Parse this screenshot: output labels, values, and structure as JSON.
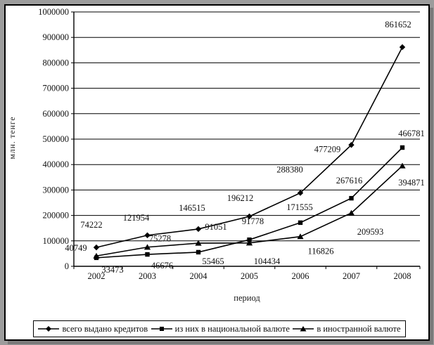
{
  "chart_data": {
    "type": "line",
    "title": "",
    "ylabel": "млн. тенге",
    "xlabel": "период",
    "categories": [
      "2002",
      "2003",
      "2004",
      "2005",
      "2006",
      "2007",
      "2008"
    ],
    "ylim": [
      0,
      1000000
    ],
    "ytick_step": 100000,
    "grid": "horizontal",
    "legend_position": "bottom",
    "line_color": "#000000",
    "series": [
      {
        "name": "всего выдано кредитов",
        "marker": "diamond",
        "values": [
          74222,
          121954,
          146515,
          196212,
          288380,
          477209,
          861652
        ],
        "label_offsets": [
          [
            -7,
            -32
          ],
          [
            -16,
            -25
          ],
          [
            -9,
            -30
          ],
          [
            -13,
            -26
          ],
          [
            -15,
            -33
          ],
          [
            -34,
            6
          ],
          [
            -6,
            -32
          ]
        ]
      },
      {
        "name": "из них в национальной валюте",
        "marker": "square",
        "values": [
          33473,
          46676,
          55465,
          104434,
          171555,
          267616,
          466781
        ],
        "label_offsets": [
          [
            23,
            17
          ],
          [
            21,
            16
          ],
          [
            21,
            13
          ],
          [
            25,
            31
          ],
          [
            -1,
            -22
          ],
          [
            -3,
            -25
          ],
          [
            13,
            -20
          ]
        ]
      },
      {
        "name": "в иностранной валюте",
        "marker": "triangle",
        "values": [
          40749,
          75278,
          91051,
          91778,
          116826,
          209593,
          394871
        ],
        "label_offsets": [
          [
            -29,
            -11
          ],
          [
            18,
            -12
          ],
          [
            25,
            -23
          ],
          [
            5,
            -31
          ],
          [
            29,
            21
          ],
          [
            27,
            27
          ],
          [
            13,
            24
          ]
        ]
      }
    ]
  }
}
